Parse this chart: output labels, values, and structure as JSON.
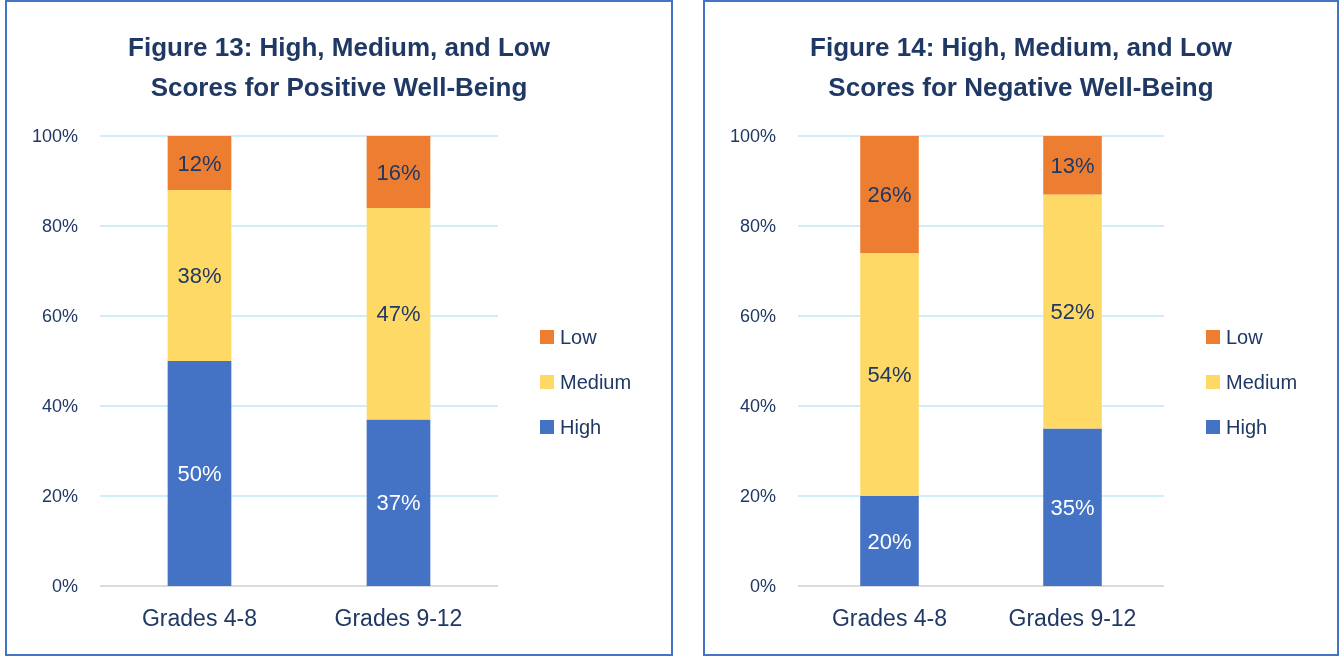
{
  "chart_data": [
    {
      "type": "bar",
      "title": "Figure 13: High, Medium, and Low Scores for Positive Well-Being",
      "categories": [
        "Grades 4-8",
        "Grades 9-12"
      ],
      "stacked": true,
      "ylim": [
        0,
        100
      ],
      "yticks": [
        {
          "value": 0,
          "label": "0%"
        },
        {
          "value": 20,
          "label": "20%"
        },
        {
          "value": 40,
          "label": "40%"
        },
        {
          "value": 60,
          "label": "60%"
        },
        {
          "value": 80,
          "label": "80%"
        },
        {
          "value": 100,
          "label": "100%"
        }
      ],
      "grid": "y",
      "legend": "right",
      "series": [
        {
          "name": "High",
          "color": "#4472c4",
          "values": [
            50,
            37
          ],
          "value_labels": [
            "50%",
            "37%"
          ]
        },
        {
          "name": "Medium",
          "color": "#ffd966",
          "values": [
            38,
            47
          ],
          "value_labels": [
            "38%",
            "47%"
          ]
        },
        {
          "name": "Low",
          "color": "#ed7d31",
          "values": [
            12,
            16
          ],
          "value_labels": [
            "12%",
            "16%"
          ]
        }
      ]
    },
    {
      "type": "bar",
      "title": "Figure 14: High, Medium, and Low Scores for Negative Well-Being",
      "categories": [
        "Grades 4-8",
        "Grades 9-12"
      ],
      "stacked": true,
      "ylim": [
        0,
        100
      ],
      "yticks": [
        {
          "value": 0,
          "label": "0%"
        },
        {
          "value": 20,
          "label": "20%"
        },
        {
          "value": 40,
          "label": "40%"
        },
        {
          "value": 60,
          "label": "60%"
        },
        {
          "value": 80,
          "label": "80%"
        },
        {
          "value": 100,
          "label": "100%"
        }
      ],
      "grid": "y",
      "legend": "right",
      "series": [
        {
          "name": "High",
          "color": "#4472c4",
          "values": [
            20,
            35
          ],
          "value_labels": [
            "20%",
            "35%"
          ]
        },
        {
          "name": "Medium",
          "color": "#ffd966",
          "values": [
            54,
            52
          ],
          "value_labels": [
            "54%",
            "52%"
          ]
        },
        {
          "name": "Low",
          "color": "#ed7d31",
          "values": [
            26,
            13
          ],
          "value_labels": [
            "26%",
            "13%"
          ]
        }
      ]
    }
  ]
}
